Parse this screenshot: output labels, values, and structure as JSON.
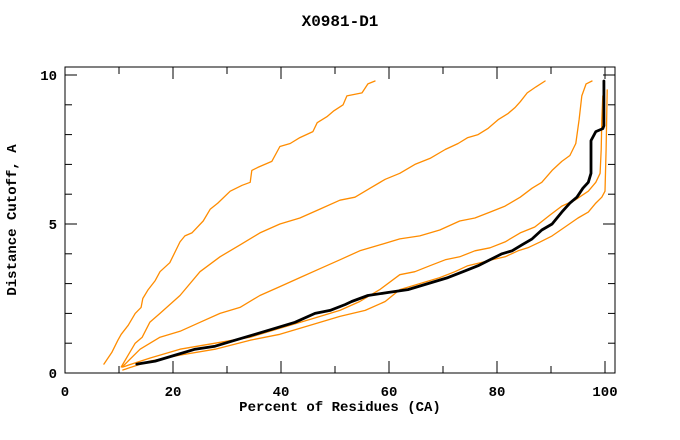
{
  "chart_data": {
    "type": "line",
    "title": "X0981-D1",
    "xlabel": "Percent of Residues (CA)",
    "ylabel": "Distance Cutoff, A",
    "xlim": [
      0,
      101.8
    ],
    "ylim": [
      0,
      10.27
    ],
    "grid": false,
    "legend": "none",
    "x_major_ticks": [
      0,
      20,
      40,
      60,
      80,
      100
    ],
    "x_minor_ticks": [
      10,
      30,
      50,
      70,
      90
    ],
    "y_major_ticks": [
      0,
      5,
      10
    ],
    "y_minor_ticks": [
      1,
      2,
      3,
      4,
      6,
      7,
      8,
      9
    ],
    "colors": {
      "model_curve": "#ff8c00",
      "highlight_curve": "#000000",
      "frame": "#000000"
    },
    "series": [
      {
        "name": "orange-model-1",
        "color": "#ff8c00",
        "width": 1.3,
        "points": [
          [
            7.2,
            0.3
          ],
          [
            8.7,
            0.7
          ],
          [
            9.8,
            1.1
          ],
          [
            10.4,
            1.3
          ],
          [
            11.7,
            1.6
          ],
          [
            13.0,
            2.0
          ],
          [
            14.1,
            2.2
          ],
          [
            14.4,
            2.5
          ],
          [
            15.4,
            2.8
          ],
          [
            16.7,
            3.1
          ],
          [
            17.6,
            3.4
          ],
          [
            19.4,
            3.7
          ],
          [
            21.3,
            4.4
          ],
          [
            22.2,
            4.6
          ],
          [
            23.5,
            4.7
          ],
          [
            25.6,
            5.1
          ],
          [
            26.9,
            5.5
          ],
          [
            28.3,
            5.7
          ],
          [
            30.6,
            6.1
          ],
          [
            32.8,
            6.3
          ],
          [
            34.3,
            6.4
          ],
          [
            34.6,
            6.8
          ],
          [
            35.7,
            6.9
          ],
          [
            38.3,
            7.1
          ],
          [
            39.8,
            7.6
          ],
          [
            41.7,
            7.7
          ],
          [
            43.5,
            7.9
          ],
          [
            45.9,
            8.1
          ],
          [
            46.7,
            8.4
          ],
          [
            48.5,
            8.6
          ],
          [
            49.8,
            8.8
          ],
          [
            51.5,
            9.0
          ],
          [
            52.2,
            9.3
          ],
          [
            55.0,
            9.4
          ],
          [
            56.1,
            9.7
          ],
          [
            57.4,
            9.8
          ]
        ]
      },
      {
        "name": "orange-model-2",
        "color": "#ff8c00",
        "width": 1.3,
        "points": [
          [
            10.4,
            0.2
          ],
          [
            11.7,
            0.6
          ],
          [
            13.0,
            1.0
          ],
          [
            14.3,
            1.2
          ],
          [
            15.7,
            1.7
          ],
          [
            17.6,
            2.0
          ],
          [
            21.3,
            2.6
          ],
          [
            25.0,
            3.4
          ],
          [
            28.7,
            3.9
          ],
          [
            32.4,
            4.3
          ],
          [
            36.1,
            4.7
          ],
          [
            39.8,
            5.0
          ],
          [
            43.5,
            5.2
          ],
          [
            47.2,
            5.5
          ],
          [
            50.9,
            5.8
          ],
          [
            53.7,
            5.9
          ],
          [
            56.5,
            6.2
          ],
          [
            59.3,
            6.5
          ],
          [
            62.0,
            6.7
          ],
          [
            64.8,
            7.0
          ],
          [
            67.6,
            7.2
          ],
          [
            70.4,
            7.5
          ],
          [
            72.8,
            7.7
          ],
          [
            74.6,
            7.9
          ],
          [
            76.5,
            8.0
          ],
          [
            78.3,
            8.2
          ],
          [
            80.2,
            8.5
          ],
          [
            82.0,
            8.7
          ],
          [
            83.3,
            8.9
          ],
          [
            84.3,
            9.1
          ],
          [
            85.6,
            9.4
          ],
          [
            87.2,
            9.6
          ],
          [
            88.9,
            9.8
          ]
        ]
      },
      {
        "name": "orange-model-3",
        "color": "#ff8c00",
        "width": 1.3,
        "points": [
          [
            10.6,
            0.2
          ],
          [
            13.9,
            0.8
          ],
          [
            17.6,
            1.2
          ],
          [
            21.3,
            1.4
          ],
          [
            25.0,
            1.7
          ],
          [
            28.7,
            2.0
          ],
          [
            32.4,
            2.2
          ],
          [
            36.1,
            2.6
          ],
          [
            39.8,
            2.9
          ],
          [
            43.5,
            3.2
          ],
          [
            47.2,
            3.5
          ],
          [
            50.9,
            3.8
          ],
          [
            54.6,
            4.1
          ],
          [
            58.3,
            4.3
          ],
          [
            62.0,
            4.5
          ],
          [
            65.7,
            4.6
          ],
          [
            69.4,
            4.8
          ],
          [
            73.1,
            5.1
          ],
          [
            75.9,
            5.2
          ],
          [
            78.7,
            5.4
          ],
          [
            81.5,
            5.6
          ],
          [
            84.3,
            5.9
          ],
          [
            86.5,
            6.2
          ],
          [
            88.3,
            6.4
          ],
          [
            90.2,
            6.8
          ],
          [
            92.0,
            7.1
          ],
          [
            93.5,
            7.3
          ],
          [
            94.6,
            7.7
          ],
          [
            95.2,
            8.5
          ],
          [
            95.7,
            9.3
          ],
          [
            96.5,
            9.7
          ],
          [
            97.6,
            9.8
          ]
        ]
      },
      {
        "name": "orange-model-4",
        "color": "#ff8c00",
        "width": 1.3,
        "points": [
          [
            10.7,
            0.2
          ],
          [
            15.7,
            0.5
          ],
          [
            21.3,
            0.8
          ],
          [
            27.8,
            1.0
          ],
          [
            34.3,
            1.2
          ],
          [
            39.8,
            1.5
          ],
          [
            45.4,
            1.8
          ],
          [
            50.9,
            2.1
          ],
          [
            54.6,
            2.4
          ],
          [
            58.3,
            2.8
          ],
          [
            62.0,
            3.3
          ],
          [
            64.8,
            3.4
          ],
          [
            67.6,
            3.6
          ],
          [
            70.4,
            3.8
          ],
          [
            73.1,
            3.9
          ],
          [
            75.9,
            4.1
          ],
          [
            78.7,
            4.2
          ],
          [
            81.5,
            4.4
          ],
          [
            84.3,
            4.7
          ],
          [
            87.0,
            4.9
          ],
          [
            89.8,
            5.3
          ],
          [
            92.0,
            5.6
          ],
          [
            94.4,
            5.8
          ],
          [
            96.9,
            6.1
          ],
          [
            98.3,
            6.4
          ],
          [
            99.1,
            6.7
          ],
          [
            99.3,
            7.5
          ],
          [
            99.4,
            8.5
          ],
          [
            99.6,
            9.3
          ]
        ]
      },
      {
        "name": "orange-model-5",
        "color": "#ff8c00",
        "width": 1.3,
        "points": [
          [
            10.7,
            0.1
          ],
          [
            15.7,
            0.4
          ],
          [
            21.3,
            0.6
          ],
          [
            27.8,
            0.8
          ],
          [
            34.3,
            1.1
          ],
          [
            39.8,
            1.3
          ],
          [
            45.4,
            1.6
          ],
          [
            50.9,
            1.9
          ],
          [
            55.6,
            2.1
          ],
          [
            59.3,
            2.4
          ],
          [
            62.0,
            2.8
          ],
          [
            65.7,
            3.0
          ],
          [
            69.4,
            3.2
          ],
          [
            72.2,
            3.4
          ],
          [
            74.6,
            3.6
          ],
          [
            76.9,
            3.7
          ],
          [
            79.1,
            3.8
          ],
          [
            81.5,
            3.9
          ],
          [
            83.9,
            4.1
          ],
          [
            85.7,
            4.2
          ],
          [
            88.0,
            4.4
          ],
          [
            90.2,
            4.6
          ],
          [
            92.6,
            4.9
          ],
          [
            95.0,
            5.2
          ],
          [
            96.9,
            5.4
          ],
          [
            98.3,
            5.7
          ],
          [
            99.4,
            5.9
          ],
          [
            100.0,
            6.1
          ],
          [
            100.2,
            7.5
          ],
          [
            100.4,
            9.5
          ]
        ]
      },
      {
        "name": "black-highlight-model",
        "color": "#000000",
        "width": 2.8,
        "points": [
          [
            13.3,
            0.3
          ],
          [
            16.7,
            0.4
          ],
          [
            20.4,
            0.6
          ],
          [
            24.1,
            0.8
          ],
          [
            27.8,
            0.9
          ],
          [
            31.5,
            1.1
          ],
          [
            35.2,
            1.3
          ],
          [
            38.9,
            1.5
          ],
          [
            42.6,
            1.7
          ],
          [
            46.3,
            2.0
          ],
          [
            49.1,
            2.1
          ],
          [
            51.9,
            2.3
          ],
          [
            53.1,
            2.4
          ],
          [
            56.1,
            2.6
          ],
          [
            59.8,
            2.7
          ],
          [
            63.5,
            2.8
          ],
          [
            67.2,
            3.0
          ],
          [
            70.9,
            3.2
          ],
          [
            73.7,
            3.4
          ],
          [
            76.5,
            3.6
          ],
          [
            78.7,
            3.8
          ],
          [
            80.9,
            4.0
          ],
          [
            82.8,
            4.1
          ],
          [
            84.6,
            4.3
          ],
          [
            86.5,
            4.5
          ],
          [
            88.3,
            4.8
          ],
          [
            90.2,
            5.0
          ],
          [
            92.0,
            5.4
          ],
          [
            93.5,
            5.7
          ],
          [
            94.8,
            5.9
          ],
          [
            95.9,
            6.2
          ],
          [
            96.9,
            6.4
          ],
          [
            97.4,
            6.7
          ],
          [
            97.4,
            7.8
          ],
          [
            98.3,
            8.1
          ],
          [
            99.6,
            8.2
          ],
          [
            99.8,
            8.3
          ],
          [
            99.8,
            9.8
          ]
        ]
      }
    ]
  }
}
